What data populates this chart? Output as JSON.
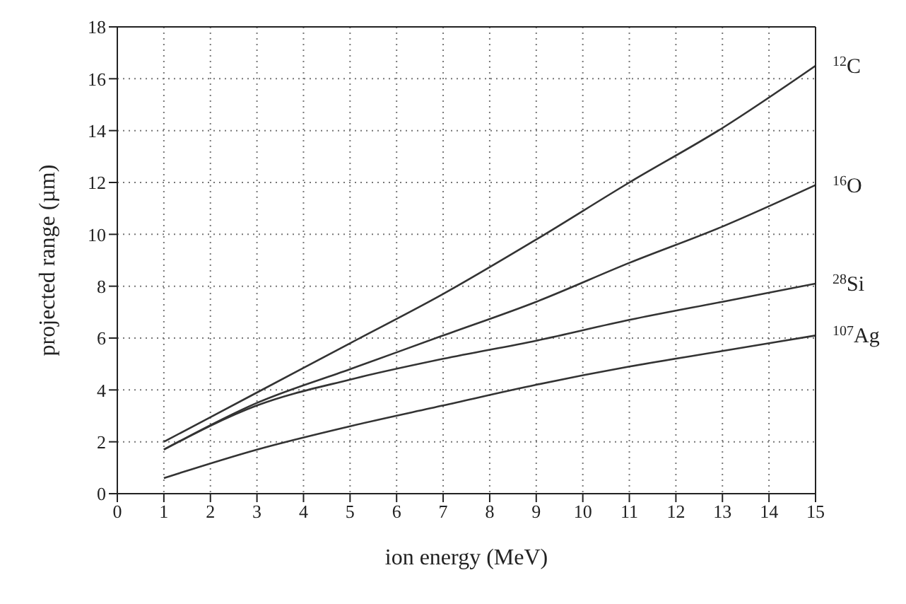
{
  "chart_data": {
    "type": "line",
    "xlabel": "ion energy (MeV)",
    "ylabel": "projected range (µm)",
    "xlim": [
      0,
      15
    ],
    "xticks": [
      0,
      1,
      2,
      3,
      4,
      5,
      6,
      7,
      8,
      9,
      10,
      11,
      12,
      13,
      14,
      15
    ],
    "ylim": [
      0,
      18
    ],
    "yticks": [
      0,
      2,
      4,
      6,
      8,
      10,
      12,
      14,
      16,
      18
    ],
    "grid": true,
    "legend": false,
    "marker": "none",
    "line_style": "solid",
    "x": [
      1,
      3,
      5,
      7,
      9,
      11,
      13,
      15
    ],
    "series": [
      {
        "name": "$^{12}$C",
        "color": "#333333",
        "values": [
          2.0,
          3.9,
          5.8,
          7.7,
          9.8,
          12.0,
          14.1,
          16.5
        ]
      },
      {
        "name": "$^{16}$O",
        "color": "#333333",
        "values": [
          1.7,
          3.5,
          4.8,
          6.1,
          7.4,
          8.9,
          10.3,
          11.9
        ]
      },
      {
        "name": "$^{28}$Si",
        "color": "#333333",
        "values": [
          1.7,
          3.4,
          4.4,
          5.2,
          5.9,
          6.7,
          7.4,
          8.1
        ]
      },
      {
        "name": "$^{107}$Ag",
        "color": "#333333",
        "values": [
          0.6,
          1.7,
          2.6,
          3.4,
          4.2,
          4.9,
          5.5,
          6.1
        ]
      }
    ]
  }
}
